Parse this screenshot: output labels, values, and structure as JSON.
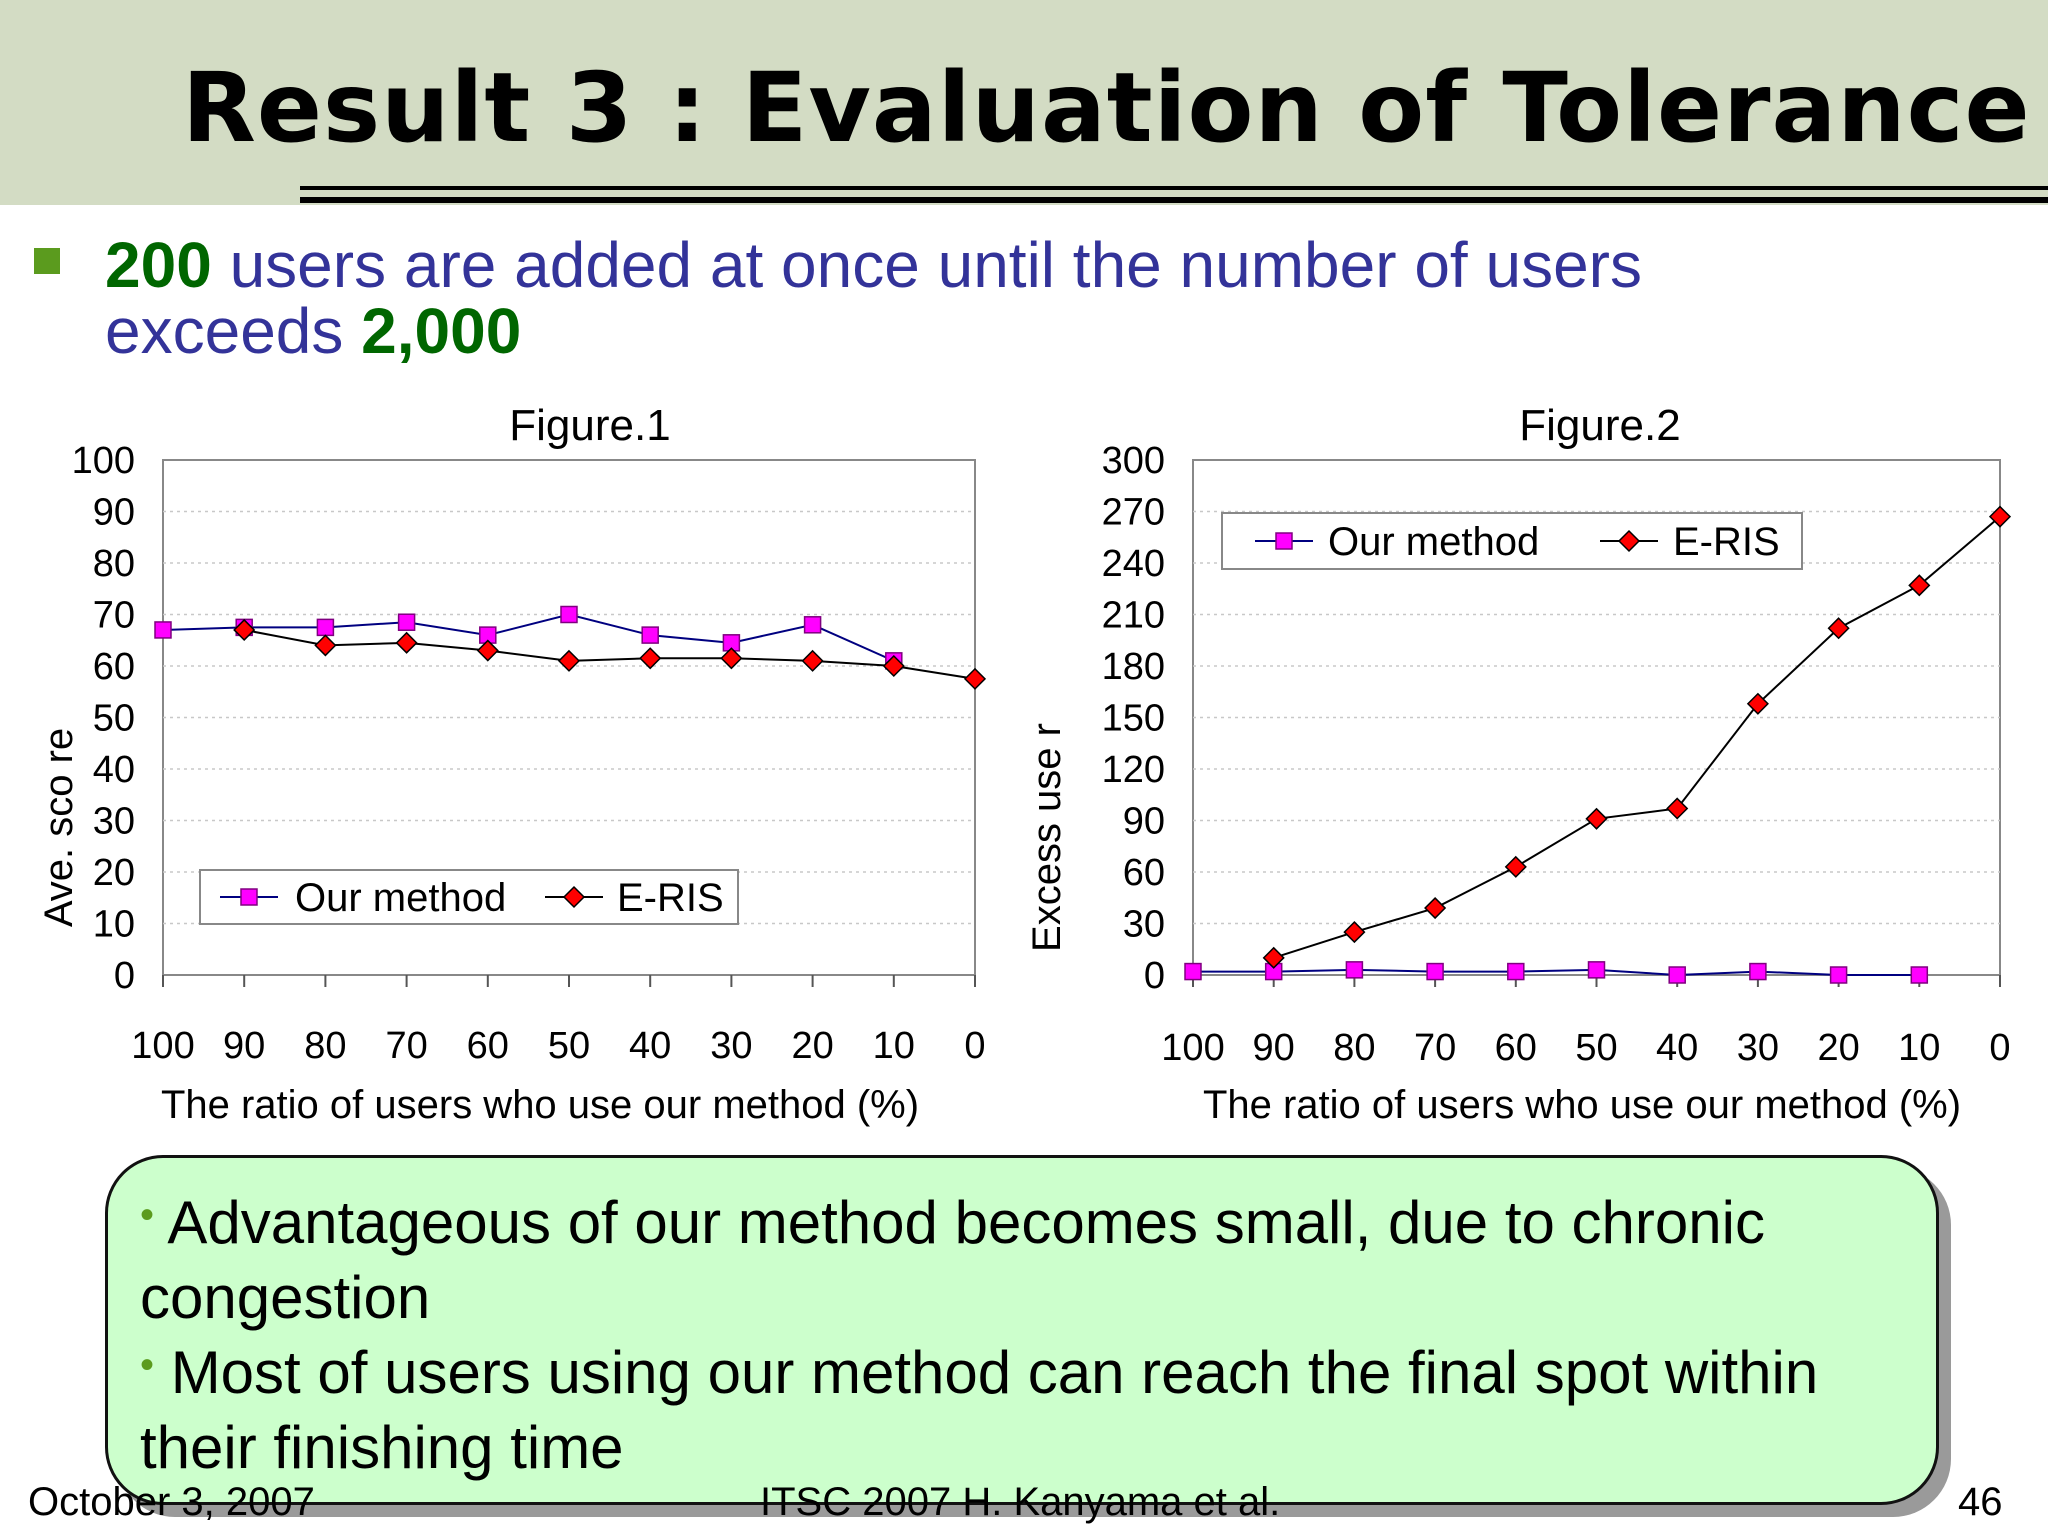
{
  "title": "Result 3 : Evaluation of Tolerance",
  "bullet": {
    "n1": "200",
    "t1": " users are added at once until the number of users exceeds ",
    "n2": "2,000"
  },
  "callout": {
    "items": [
      "Advantageous of our method becomes small, due to chronic congestion",
      "Most of users using our method can reach the final spot within their finishing time"
    ]
  },
  "footer": {
    "date": "October 3, 2007",
    "center": "ITSC 2007 H. Kanyama et al.",
    "page": "46"
  },
  "colors": {
    "our_method": "#ff00ff",
    "eris": "#ff0000",
    "title_bg": "#d3dcc4",
    "callout_bg": "#ccffcc"
  },
  "chart_data": [
    {
      "type": "line",
      "title": "Figure.1",
      "xlabel": "The ratio of users who use our method (%)",
      "ylabel": "Ave. sco re",
      "categories": [
        "100",
        "90",
        "80",
        "70",
        "60",
        "50",
        "40",
        "30",
        "20",
        "10",
        "0"
      ],
      "ylim": [
        0,
        100
      ],
      "yticks": [
        0,
        10,
        20,
        30,
        40,
        50,
        60,
        70,
        80,
        90,
        100
      ],
      "legend": "bottom-left",
      "series": [
        {
          "name": "Our method",
          "marker": "square",
          "values": [
            67,
            67.5,
            67.5,
            68.5,
            66,
            70,
            66,
            64.5,
            68,
            61,
            null
          ]
        },
        {
          "name": "E-RIS",
          "marker": "diamond",
          "values": [
            null,
            67,
            64,
            64.5,
            63,
            61,
            61.5,
            61.5,
            61,
            60,
            57.5
          ]
        }
      ]
    },
    {
      "type": "line",
      "title": "Figure.2",
      "xlabel": "The ratio of users who use our method (%)",
      "ylabel": "Excess use r",
      "categories": [
        "100",
        "90",
        "80",
        "70",
        "60",
        "50",
        "40",
        "30",
        "20",
        "10",
        "0"
      ],
      "ylim": [
        0,
        300
      ],
      "yticks": [
        0,
        30,
        60,
        90,
        120,
        150,
        180,
        210,
        240,
        270,
        300
      ],
      "legend": "top-left",
      "series": [
        {
          "name": "Our method",
          "marker": "square",
          "values": [
            2,
            2,
            3,
            2,
            2,
            3,
            0,
            2,
            0,
            0,
            null
          ]
        },
        {
          "name": "E-RIS",
          "marker": "diamond",
          "values": [
            null,
            10,
            25,
            39,
            63,
            91,
            97,
            158,
            202,
            227,
            267
          ]
        }
      ]
    }
  ]
}
